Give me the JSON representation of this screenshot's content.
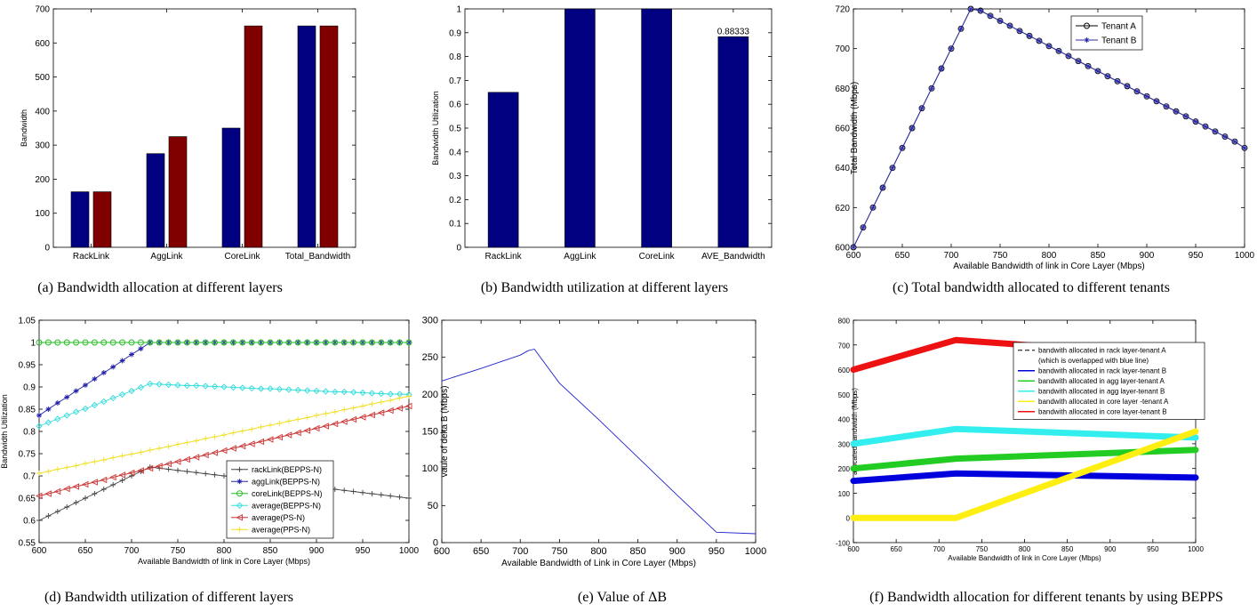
{
  "panels": [
    {
      "id": "a",
      "caption": "(a) Bandwidth allocation at different layers",
      "chart_data": {
        "type": "bar",
        "categories": [
          "RackLink",
          "AggLink",
          "CoreLink",
          "Total_Bandwidth"
        ],
        "series": [
          {
            "color": "#000080",
            "values": [
              163,
              275,
              350,
              650
            ]
          },
          {
            "color": "#800000",
            "values": [
              163,
              325,
              650,
              650
            ]
          }
        ],
        "xlabel": "",
        "ylabel": "Bandwidth",
        "ylim": [
          0,
          700
        ],
        "yticks": [
          0,
          100,
          200,
          300,
          400,
          500,
          600,
          700
        ],
        "grid": false
      }
    },
    {
      "id": "b",
      "caption": "(b) Bandwidth utilization at different layers",
      "chart_data": {
        "type": "bar",
        "categories": [
          "RackLink",
          "AggLink",
          "CoreLink",
          "AVE_Bandwidth"
        ],
        "series": [
          {
            "color": "#000080",
            "values": [
              0.65,
              1.0,
              1.0,
              0.88333
            ]
          }
        ],
        "annotations": [
          {
            "text": "0.88333",
            "category": "AVE_Bandwidth"
          }
        ],
        "xlabel": "",
        "ylabel": "Bandwidth Utilization",
        "ylim": [
          0,
          1
        ],
        "yticks": [
          0,
          0.1,
          0.2,
          0.3,
          0.4,
          0.5,
          0.6,
          0.7,
          0.8,
          0.9,
          1
        ],
        "grid": false
      }
    },
    {
      "id": "c",
      "caption": "(c) Total bandwidth allocated to different tenants",
      "chart_data": {
        "type": "line",
        "x": [
          600,
          610,
          620,
          630,
          640,
          650,
          660,
          670,
          680,
          690,
          700,
          710,
          720,
          730,
          740,
          750,
          760,
          770,
          780,
          790,
          800,
          810,
          820,
          830,
          840,
          850,
          860,
          870,
          880,
          890,
          900,
          910,
          920,
          930,
          940,
          950,
          960,
          970,
          980,
          990,
          1000
        ],
        "series": [
          {
            "name": "Tenant A",
            "color": "#000000",
            "marker": "circle",
            "values": [
              600,
              610,
              620,
              630,
              640,
              650,
              660,
              670,
              680,
              690,
              700,
              710,
              720,
              719.1,
              716.5,
              714.0,
              711.5,
              708.9,
              706.4,
              703.9,
              701.3,
              698.8,
              696.3,
              693.7,
              691.2,
              688.7,
              686.1,
              683.6,
              681.1,
              678.5,
              676.0,
              673.5,
              670.9,
              668.4,
              665.9,
              663.3,
              660.8,
              658.3,
              655.7,
              653.2,
              650
            ]
          },
          {
            "name": "Tenant B",
            "color": "#2a2aa8",
            "marker": "star",
            "values": [
              600,
              610,
              620,
              630,
              640,
              650,
              660,
              670,
              680,
              690,
              700,
              710,
              720,
              719.1,
              716.5,
              714.0,
              711.5,
              708.9,
              706.4,
              703.9,
              701.3,
              698.8,
              696.3,
              693.7,
              691.2,
              688.7,
              686.1,
              683.6,
              681.1,
              678.5,
              676.0,
              673.5,
              670.9,
              668.4,
              665.9,
              663.3,
              660.8,
              658.3,
              655.7,
              653.2,
              650
            ]
          }
        ],
        "xlabel": "Available Bandwidth of link in Core Layer (Mbps)",
        "ylabel": "Total Bandwidth (Mbps)",
        "xlim": [
          600,
          1000
        ],
        "ylim": [
          600,
          720
        ],
        "xticks": [
          600,
          650,
          700,
          750,
          800,
          850,
          900,
          950,
          1000
        ],
        "yticks": [
          600,
          620,
          640,
          660,
          680,
          700,
          720
        ],
        "legend": "top-right",
        "grid": false
      }
    },
    {
      "id": "d",
      "caption": "(d) Bandwidth utilization of different layers",
      "chart_data": {
        "type": "line",
        "x": [
          600,
          610,
          620,
          630,
          640,
          650,
          660,
          670,
          680,
          690,
          700,
          710,
          720,
          730,
          740,
          750,
          760,
          770,
          780,
          790,
          800,
          810,
          820,
          830,
          840,
          850,
          860,
          870,
          880,
          890,
          900,
          910,
          920,
          930,
          940,
          950,
          960,
          970,
          980,
          990,
          1000
        ],
        "series": [
          {
            "name": "rackLink(BEPPS-N)",
            "color": "#444444",
            "marker": "plus",
            "values": [
              0.6,
              0.61,
              0.62,
              0.63,
              0.64,
              0.65,
              0.66,
              0.67,
              0.68,
              0.69,
              0.7,
              0.71,
              0.72,
              0.7175,
              0.715,
              0.7125,
              0.71,
              0.7075,
              0.705,
              0.7025,
              0.7,
              0.6975,
              0.695,
              0.6925,
              0.69,
              0.6875,
              0.685,
              0.6825,
              0.68,
              0.6775,
              0.675,
              0.6725,
              0.67,
              0.6675,
              0.665,
              0.6625,
              0.66,
              0.6575,
              0.655,
              0.6525,
              0.65
            ]
          },
          {
            "name": "aggLink(BEPPS-N)",
            "color": "#2222aa",
            "marker": "star",
            "values": [
              0.836,
              0.85,
              0.864,
              0.877,
              0.891,
              0.904,
              0.918,
              0.932,
              0.945,
              0.959,
              0.973,
              0.986,
              1.0,
              1.0,
              1.0,
              1.0,
              1.0,
              1.0,
              1.0,
              1.0,
              1.0,
              1.0,
              1.0,
              1.0,
              1.0,
              1.0,
              1.0,
              1.0,
              1.0,
              1.0,
              1.0,
              1.0,
              1.0,
              1.0,
              1.0,
              1.0,
              1.0,
              1.0,
              1.0,
              1.0,
              1.0
            ]
          },
          {
            "name": "coreLink(BEPPS-N)",
            "color": "#22bb22",
            "marker": "circle",
            "values": [
              1.0,
              1.0,
              1.0,
              1.0,
              1.0,
              1.0,
              1.0,
              1.0,
              1.0,
              1.0,
              1.0,
              1.0,
              1.0,
              1.0,
              1.0,
              1.0,
              1.0,
              1.0,
              1.0,
              1.0,
              1.0,
              1.0,
              1.0,
              1.0,
              1.0,
              1.0,
              1.0,
              1.0,
              1.0,
              1.0,
              1.0,
              1.0,
              1.0,
              1.0,
              1.0,
              1.0,
              1.0,
              1.0,
              1.0,
              1.0,
              1.0
            ]
          },
          {
            "name": "average(BEPPS-N)",
            "color": "#33dddd",
            "marker": "diamond",
            "values": [
              0.812,
              0.82,
              0.828,
              0.836,
              0.844,
              0.851,
              0.859,
              0.867,
              0.875,
              0.883,
              0.891,
              0.899,
              0.907,
              0.906,
              0.905,
              0.904,
              0.903,
              0.903,
              0.902,
              0.901,
              0.9,
              0.899,
              0.898,
              0.897,
              0.896,
              0.896,
              0.895,
              0.894,
              0.893,
              0.892,
              0.891,
              0.89,
              0.889,
              0.889,
              0.888,
              0.887,
              0.886,
              0.885,
              0.884,
              0.884,
              0.883
            ]
          },
          {
            "name": "average(PS-N)",
            "color": "#cc3333",
            "marker": "triangle",
            "values": [
              0.655,
              0.66,
              0.665,
              0.671,
              0.676,
              0.681,
              0.686,
              0.691,
              0.697,
              0.702,
              0.707,
              0.712,
              0.717,
              0.722,
              0.727,
              0.732,
              0.737,
              0.742,
              0.747,
              0.752,
              0.757,
              0.762,
              0.767,
              0.772,
              0.777,
              0.782,
              0.787,
              0.792,
              0.797,
              0.802,
              0.807,
              0.812,
              0.817,
              0.822,
              0.827,
              0.832,
              0.837,
              0.842,
              0.847,
              0.852,
              0.857
            ]
          },
          {
            "name": "average(PPS-N)",
            "color": "#f0e02a",
            "marker": "plus",
            "values": [
              0.706,
              0.71,
              0.715,
              0.719,
              0.723,
              0.728,
              0.732,
              0.736,
              0.741,
              0.745,
              0.749,
              0.753,
              0.758,
              0.762,
              0.766,
              0.771,
              0.775,
              0.779,
              0.784,
              0.788,
              0.792,
              0.797,
              0.801,
              0.805,
              0.81,
              0.814,
              0.818,
              0.823,
              0.827,
              0.831,
              0.836,
              0.84,
              0.844,
              0.849,
              0.853,
              0.857,
              0.862,
              0.866,
              0.87,
              0.875,
              0.879
            ]
          }
        ],
        "xlabel": "Available Bandwidth of link in Core Layer (Mbps)",
        "ylabel": "Bandwidth Utilization",
        "xlim": [
          600,
          1000
        ],
        "ylim": [
          0.55,
          1.05
        ],
        "xticks": [
          600,
          650,
          700,
          750,
          800,
          850,
          900,
          950,
          1000
        ],
        "yticks": [
          0.55,
          0.6,
          0.65,
          0.7,
          0.75,
          0.8,
          0.85,
          0.9,
          0.95,
          1,
          1.05
        ],
        "legend": "bottom-right",
        "grid": false
      }
    },
    {
      "id": "e",
      "caption": "(e) Value of ΔB",
      "chart_data": {
        "type": "line",
        "x": [
          600,
          650,
          700,
          710,
          718,
          750,
          800,
          850,
          900,
          950,
          1000
        ],
        "series": [
          {
            "color": "#2222cc",
            "values": [
              218,
              235,
              253,
              259,
              261,
              215,
              166,
              115,
              64,
              14,
              12
            ]
          }
        ],
        "xlabel": "Available Bandwidth of Link in Core Layer (Mbps)",
        "ylabel": "vaule of delta B (Mbps)",
        "xlim": [
          600,
          1000
        ],
        "ylim": [
          0,
          300
        ],
        "xticks": [
          600,
          650,
          700,
          750,
          800,
          850,
          900,
          950,
          1000
        ],
        "yticks": [
          0,
          50,
          100,
          150,
          200,
          250,
          300
        ],
        "grid": false
      }
    },
    {
      "id": "f",
      "caption": "(f) Bandwidth allocation for different tenants by using BEPPS",
      "chart_data": {
        "type": "line",
        "x": [
          600,
          720,
          1000
        ],
        "series": [
          {
            "name": "bandwith allocated in rack layer-tenant A",
            "name2": "(which is overlapped with blue line)",
            "color": "#000000",
            "dashed": true,
            "width": 1,
            "values": [
              150,
              180,
              163
            ]
          },
          {
            "name": "bandwith allocated in rack layer-tenant B",
            "color": "#0000dd",
            "width": 7,
            "values": [
              150,
              180,
              163
            ]
          },
          {
            "name": "bandwith allocated in agg layer-tenant A",
            "color": "#22cc22",
            "width": 7,
            "values": [
              200,
              240,
              275
            ]
          },
          {
            "name": "bandwith allocated in agg layer-tenant B",
            "color": "#33eeee",
            "width": 7,
            "values": [
              300,
              360,
              325
            ]
          },
          {
            "name": "bandwith allocated in core layer -tenant A",
            "color": "#ffee11",
            "width": 7,
            "values": [
              0,
              0,
              350
            ]
          },
          {
            "name": "bandwith allocated in core layer-tenant B",
            "color": "#ee1111",
            "width": 7,
            "values": [
              600,
              720,
              650
            ]
          }
        ],
        "xlabel": "Available Bandwidth of link in Core Layer (Mbps)",
        "ylabel": "allocated bandwidth (Mbps)",
        "xlim": [
          600,
          1000
        ],
        "ylim": [
          -100,
          800
        ],
        "xticks": [
          600,
          650,
          700,
          750,
          800,
          850,
          900,
          950,
          1000
        ],
        "yticks": [
          -100,
          0,
          100,
          200,
          300,
          400,
          500,
          600,
          700,
          800
        ],
        "legend": "top-right",
        "grid": false
      }
    }
  ]
}
